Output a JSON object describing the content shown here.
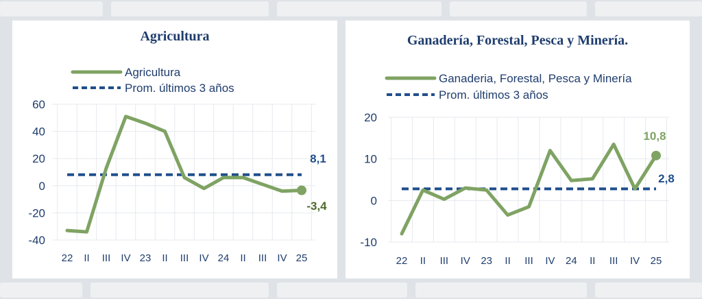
{
  "colors": {
    "series": "#7fa363",
    "avg": "#1f4e8c",
    "last_label": "#4d6a2b",
    "text": "#1f3d6e",
    "grid": "#e6e9ee",
    "background": "#dfe3e7"
  },
  "chart_data": [
    {
      "type": "line",
      "title": "Agricultura",
      "categories": [
        "22",
        "II",
        "III",
        "IV",
        "23",
        "II",
        "III",
        "IV",
        "24",
        "II",
        "III",
        "IV",
        "25"
      ],
      "series": [
        {
          "name": "Agricultura",
          "values": [
            -33,
            -34,
            13,
            51,
            46,
            40,
            6,
            -2,
            6,
            6,
            1,
            -4,
            -3.4
          ],
          "style": "solid"
        },
        {
          "name": "Prom. últimos 3 años",
          "values": [
            8.1,
            8.1,
            8.1,
            8.1,
            8.1,
            8.1,
            8.1,
            8.1,
            8.1,
            8.1,
            8.1,
            8.1,
            8.1
          ],
          "style": "dashed"
        }
      ],
      "yticks": [
        -40,
        -20,
        0,
        20,
        40,
        60
      ],
      "ylim": [
        -40,
        60
      ],
      "grid": true,
      "legend_position": "top-left",
      "value_labels": {
        "avg": "8,1",
        "last": "-3,4"
      },
      "xlabel": "",
      "ylabel": ""
    },
    {
      "type": "line",
      "title": "Ganadería, Forestal, Pesca y Minería.",
      "categories": [
        "22",
        "II",
        "III",
        "IV",
        "23",
        "II",
        "III",
        "IV",
        "24",
        "II",
        "III",
        "IV",
        "25"
      ],
      "series": [
        {
          "name": "Ganaderia, Forestal, Pesca y Minería",
          "values": [
            -8,
            2.5,
            0.3,
            3,
            2.5,
            -3.5,
            -1.5,
            12,
            4.8,
            5.2,
            13.5,
            2.8,
            10.8
          ],
          "style": "solid"
        },
        {
          "name": "Prom. últimos 3 años",
          "values": [
            2.8,
            2.8,
            2.8,
            2.8,
            2.8,
            2.8,
            2.8,
            2.8,
            2.8,
            2.8,
            2.8,
            2.8,
            2.8
          ],
          "style": "dashed"
        }
      ],
      "yticks": [
        -10,
        0,
        10,
        20
      ],
      "ylim": [
        -10,
        20
      ],
      "grid": true,
      "legend_position": "top-left",
      "value_labels": {
        "avg": "2,8",
        "last": "10,8"
      },
      "xlabel": "",
      "ylabel": ""
    }
  ]
}
